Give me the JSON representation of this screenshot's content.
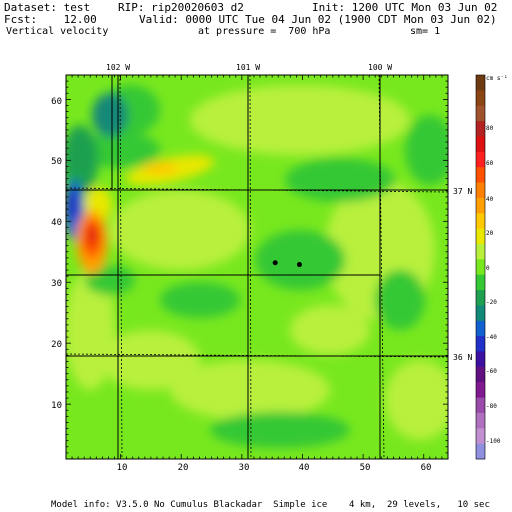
{
  "header": {
    "dataset": "Dataset: test",
    "rip": "RIP: rip20020603 d2",
    "init": "Init: 1200 UTC Mon 03 Jun 02",
    "fcst": "Fcst:    12.00",
    "valid": "Valid: 0000 UTC Tue 04 Jun 02 (1900 CDT Mon 03 Jun 02)",
    "field": "Vertical velocity",
    "pressure": "at pressure =  700 hPa",
    "sm": "sm= 1"
  },
  "footer": "Model info: V3.5.0 No Cumulus Blackadar  Simple ice    4 km,  29 levels,   10 sec",
  "map": {
    "top_lon_labels": [
      "102 W",
      "101 W",
      "100 W"
    ],
    "right_lat_labels": [
      "37 N",
      "36 N"
    ],
    "x_ticks": [
      "10",
      "20",
      "30",
      "40",
      "50",
      "60"
    ],
    "y_ticks": [
      "10",
      "20",
      "30",
      "40",
      "50",
      "60"
    ]
  },
  "colorbar": {
    "unit_label": "cm s⁻¹",
    "labels": [
      "80",
      "60",
      "40",
      "20",
      "0",
      "-20",
      "-40",
      "-60",
      "-80",
      "-100"
    ],
    "colors": [
      "#6e3a12",
      "#8b4513",
      "#a0522d",
      "#b22222",
      "#dd1111",
      "#ff2020",
      "#ff5000",
      "#ff8000",
      "#ffa000",
      "#ffc800",
      "#e8e800",
      "#b8f03c",
      "#78e81e",
      "#34c834",
      "#1ea050",
      "#128878",
      "#1060d0",
      "#2030c8",
      "#3c10a0",
      "#601080",
      "#801890",
      "#9a4aa8",
      "#b070c0",
      "#c090d0",
      "#9090e0"
    ]
  },
  "points": [
    {
      "x": 35.5,
      "y": 33.2
    },
    {
      "x": 39.5,
      "y": 32.9
    }
  ]
}
